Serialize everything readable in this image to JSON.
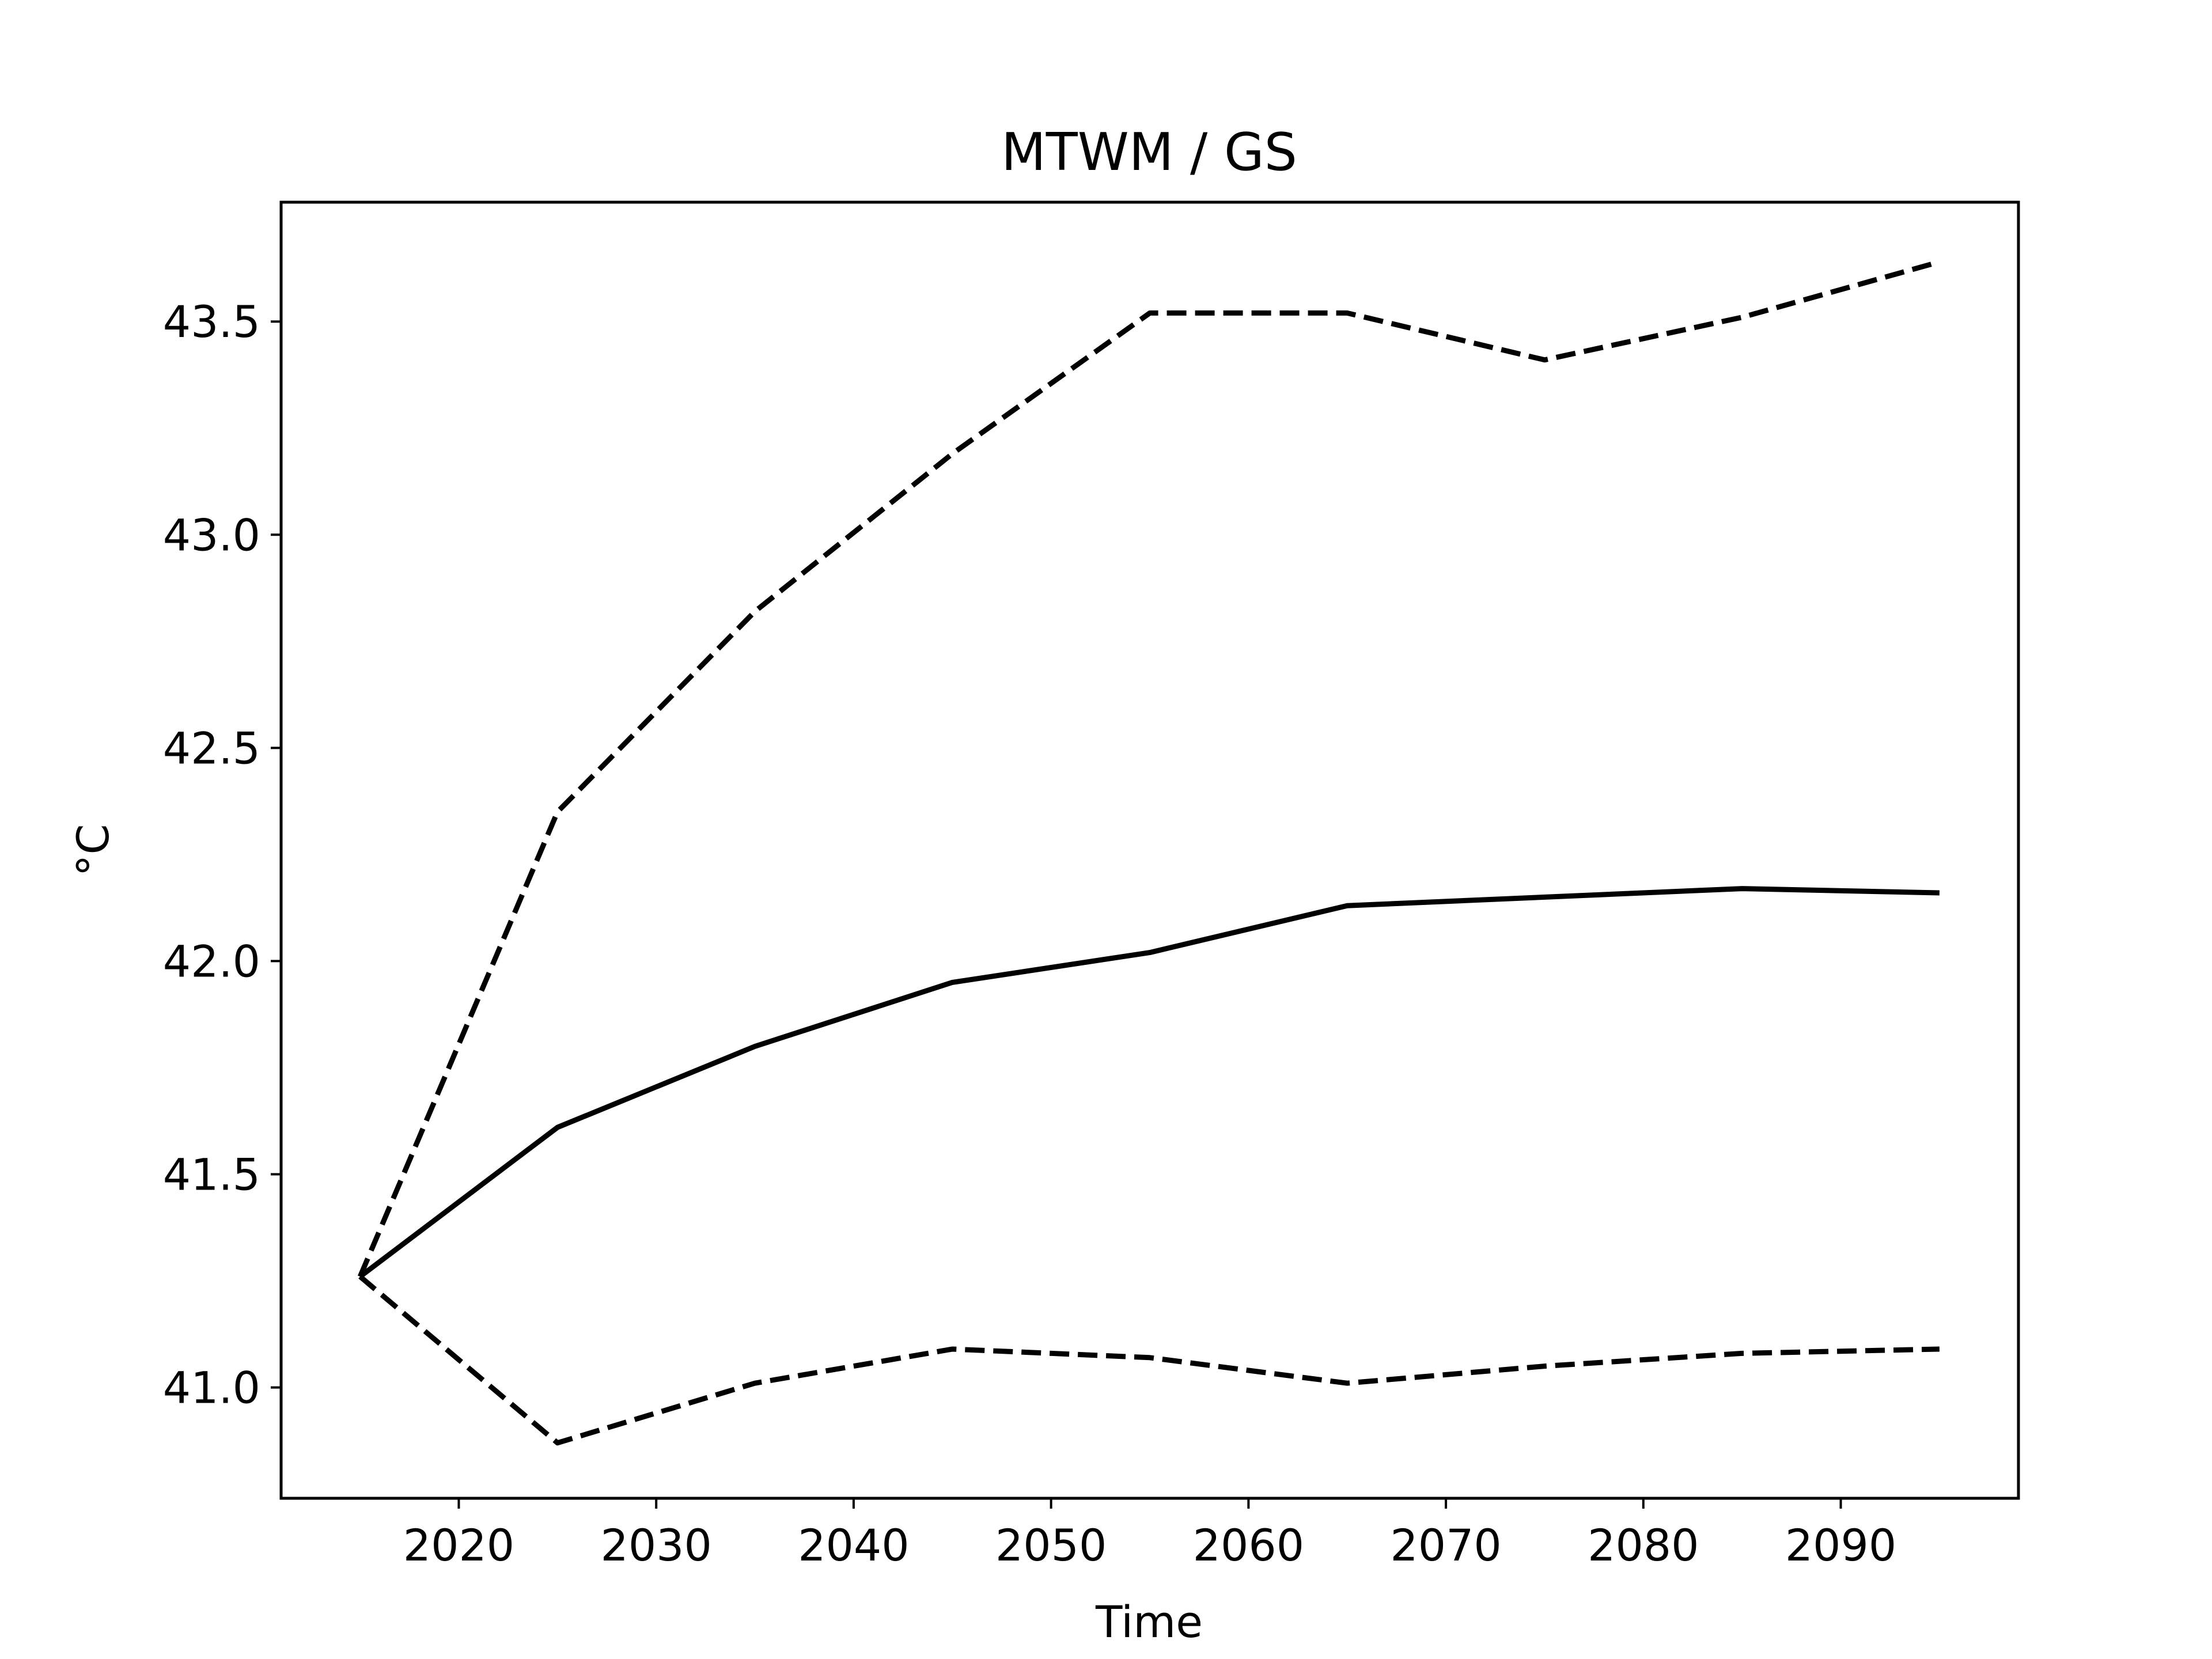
{
  "chart_data": {
    "type": "line",
    "title": "MTWM / GS",
    "xlabel": "Time",
    "ylabel": "°C",
    "xlim": [
      2011,
      2099
    ],
    "ylim": [
      40.74,
      43.78
    ],
    "x": [
      2015,
      2025,
      2035,
      2045,
      2055,
      2065,
      2075,
      2085,
      2095
    ],
    "x_ticks": [
      2020,
      2030,
      2040,
      2050,
      2060,
      2070,
      2080,
      2090
    ],
    "y_ticks": [
      41.0,
      41.5,
      42.0,
      42.5,
      43.0,
      43.5
    ],
    "grid": false,
    "series": [
      {
        "style": "dashed",
        "color": "#000000",
        "values": [
          41.26,
          42.35,
          42.82,
          43.19,
          43.52,
          43.52,
          43.41,
          43.51,
          43.64
        ]
      },
      {
        "style": "solid",
        "color": "#000000",
        "values": [
          41.26,
          41.61,
          41.8,
          41.95,
          42.02,
          42.13,
          42.15,
          42.17,
          42.16
        ]
      },
      {
        "style": "dashed",
        "color": "#000000",
        "values": [
          41.26,
          40.87,
          41.01,
          41.09,
          41.07,
          41.01,
          41.05,
          41.08,
          41.09
        ]
      }
    ]
  }
}
